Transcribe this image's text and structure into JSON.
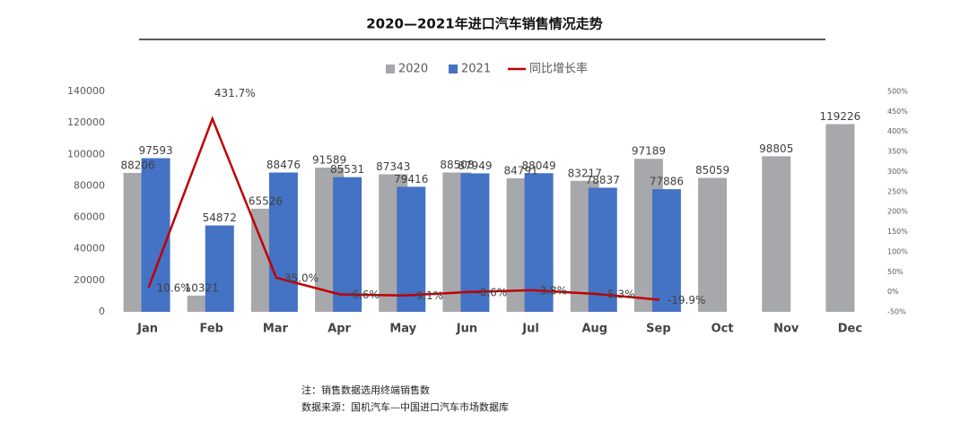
{
  "chart_data": {
    "type": "bar",
    "title": "2020—2021年进口汽车销售情况走势",
    "categories": [
      "Jan",
      "Feb",
      "Mar",
      "Apr",
      "May",
      "Jun",
      "Jul",
      "Aug",
      "Sep",
      "Oct",
      "Nov",
      "Dec"
    ],
    "series": [
      {
        "name": "2020",
        "type": "bar",
        "color": "#a6a8ab",
        "values": [
          88206,
          10321,
          65526,
          91589,
          87343,
          88508,
          84791,
          83217,
          97189,
          85059,
          98805,
          119226
        ]
      },
      {
        "name": "2021",
        "type": "bar",
        "color": "#4472c4",
        "values": [
          97593,
          54872,
          88476,
          85531,
          79416,
          87949,
          88049,
          78837,
          77886,
          null,
          null,
          null
        ]
      },
      {
        "name": "同比增长率",
        "type": "line",
        "axis": "y2",
        "color": "#c00000",
        "values": [
          10.6,
          431.7,
          35.0,
          -6.6,
          -9.1,
          -0.6,
          3.8,
          -5.3,
          -19.9,
          null,
          null,
          null
        ],
        "value_labels": [
          "10.6%",
          "431.7%",
          "35.0%",
          "-6.6%",
          "-9.1%",
          "-0.6%",
          "3.8%",
          "-5.3%",
          "-19.9%",
          null,
          null,
          null
        ]
      }
    ],
    "ylim": [
      0,
      140000
    ],
    "yticks": [
      0,
      20000,
      40000,
      60000,
      80000,
      100000,
      120000,
      140000
    ],
    "y2lim": [
      -50,
      500
    ],
    "y2ticks": [
      {
        "value": -50,
        "label": "-50%"
      },
      {
        "value": 0,
        "label": "0%"
      },
      {
        "value": 50,
        "label": "50%"
      },
      {
        "value": 100,
        "label": "100%"
      },
      {
        "value": 150,
        "label": "150%"
      },
      {
        "value": 200,
        "label": "200%"
      },
      {
        "value": 250,
        "label": "250%"
      },
      {
        "value": 300,
        "label": "300%"
      },
      {
        "value": 350,
        "label": "350%"
      },
      {
        "value": 400,
        "label": "400%"
      },
      {
        "value": 450,
        "label": "450%"
      },
      {
        "value": 500,
        "label": "500%"
      }
    ],
    "legend": "top",
    "notes": [
      "注：销售数据选用终端销售数",
      "数据来源：国机汽车—中国进口汽车市场数据库"
    ]
  }
}
